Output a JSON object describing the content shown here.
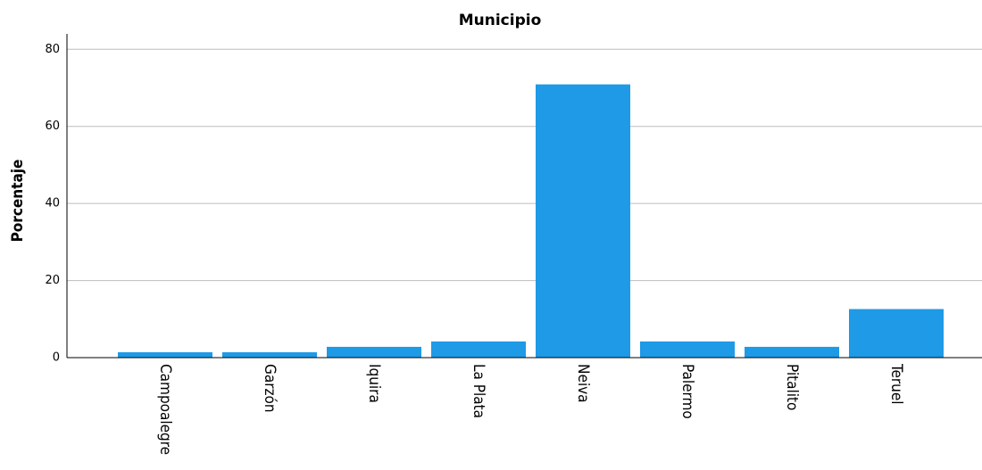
{
  "chart_data": {
    "type": "bar",
    "title": "Municipio",
    "y_label": "Porcentaje",
    "categories": [
      "Campoalegre",
      "Garzón",
      "Iquira",
      "La Plata",
      "Neiva",
      "Palermo",
      "Pitalito",
      "Teruel"
    ],
    "values": [
      1.4,
      1.4,
      2.8,
      4.2,
      70.9,
      4.2,
      2.8,
      12.6
    ],
    "color": "#1e9ae6",
    "ylim": [
      0,
      84
    ],
    "yticks": [
      0,
      20,
      40,
      60,
      80
    ],
    "grid": true
  }
}
